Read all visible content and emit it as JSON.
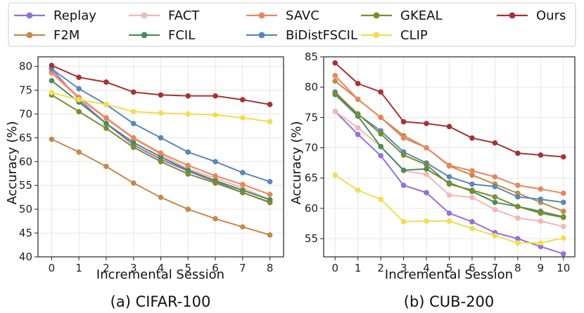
{
  "chart_data": [
    {
      "type": "line",
      "caption": "(a) CIFAR-100",
      "xlabel": "Incremental Session",
      "ylabel": "Accuracy (%)",
      "x": [
        0,
        1,
        2,
        3,
        4,
        5,
        6,
        7,
        8
      ],
      "xticks": [
        "0",
        "1",
        "2",
        "3",
        "4",
        "5",
        "6",
        "7",
        "8"
      ],
      "yticks": [
        "40",
        "45",
        "50",
        "55",
        "60",
        "65",
        "70",
        "75",
        "80"
      ],
      "ylim": [
        40,
        82
      ],
      "grid": true,
      "series": [
        {
          "name": "Replay",
          "values": [
            79.5,
            73.0,
            68.0,
            63.5,
            60.5,
            58.0,
            55.8,
            53.5,
            51.5
          ]
        },
        {
          "name": "F2M",
          "values": [
            64.7,
            62.0,
            59.0,
            55.5,
            52.5,
            50.0,
            48.0,
            46.3,
            44.6
          ]
        },
        {
          "name": "FACT",
          "values": [
            78.5,
            73.2,
            69.0,
            64.8,
            61.5,
            58.5,
            56.5,
            54.5,
            52.0
          ]
        },
        {
          "name": "FCIL",
          "values": [
            77.0,
            72.5,
            68.0,
            64.0,
            61.0,
            58.2,
            56.0,
            54.0,
            52.0
          ]
        },
        {
          "name": "SAVC",
          "values": [
            78.8,
            73.5,
            69.2,
            65.0,
            61.8,
            59.2,
            57.0,
            55.2,
            53.1
          ]
        },
        {
          "name": "BiDistFSCIL",
          "values": [
            79.5,
            75.3,
            72.0,
            68.0,
            65.0,
            62.0,
            60.0,
            57.7,
            55.8
          ]
        },
        {
          "name": "GKEAL",
          "values": [
            74.0,
            70.5,
            67.0,
            63.0,
            60.0,
            57.4,
            55.5,
            53.5,
            51.4
          ]
        },
        {
          "name": "CLIP",
          "values": [
            74.5,
            73.0,
            72.0,
            70.5,
            70.2,
            70.0,
            69.8,
            69.2,
            68.4
          ]
        },
        {
          "name": "Ours",
          "values": [
            80.2,
            77.7,
            76.7,
            74.6,
            74.0,
            73.8,
            73.8,
            73.0,
            72.0
          ]
        }
      ]
    },
    {
      "type": "line",
      "caption": "(b) CUB-200",
      "xlabel": "Incremental Session",
      "ylabel": "Accuracy (%)",
      "x": [
        0,
        1,
        2,
        3,
        4,
        5,
        6,
        7,
        8,
        9,
        10
      ],
      "xticks": [
        "0",
        "1",
        "2",
        "3",
        "4",
        "5",
        "6",
        "7",
        "8",
        "9",
        "10"
      ],
      "yticks": [
        "55",
        "60",
        "65",
        "70",
        "75",
        "80",
        "85"
      ],
      "ylim": [
        52,
        85
      ],
      "grid": true,
      "series": [
        {
          "name": "Replay",
          "values": [
            76.0,
            72.2,
            68.7,
            63.8,
            62.6,
            59.2,
            57.8,
            56.0,
            55.0,
            53.7,
            52.5
          ]
        },
        {
          "name": "F2M",
          "values": [
            81.0,
            78.0,
            75.0,
            72.0,
            70.0,
            67.0,
            65.5,
            64.0,
            62.5,
            61.0,
            59.5
          ]
        },
        {
          "name": "FACT",
          "values": [
            76.0,
            73.3,
            70.2,
            66.2,
            65.6,
            62.2,
            61.8,
            59.8,
            58.4,
            57.9,
            57.0
          ]
        },
        {
          "name": "FCIL",
          "values": [
            78.8,
            75.2,
            70.2,
            66.3,
            66.5,
            64.2,
            62.8,
            61.0,
            60.3,
            59.5,
            58.6
          ]
        },
        {
          "name": "SAVC",
          "values": [
            81.9,
            78.0,
            75.0,
            71.6,
            70.0,
            67.1,
            66.2,
            65.2,
            63.8,
            63.2,
            62.5
          ]
        },
        {
          "name": "BiDistFSCIL",
          "values": [
            79.2,
            75.5,
            72.8,
            69.3,
            67.5,
            65.2,
            64.0,
            63.6,
            61.9,
            61.5,
            61.0
          ]
        },
        {
          "name": "GKEAL",
          "values": [
            79.0,
            75.6,
            72.3,
            68.8,
            67.2,
            64.0,
            63.0,
            61.9,
            60.3,
            59.2,
            58.5
          ]
        },
        {
          "name": "CLIP",
          "values": [
            65.5,
            63.0,
            61.5,
            57.8,
            57.9,
            57.9,
            56.7,
            55.5,
            54.3,
            54.3,
            55.1
          ]
        },
        {
          "name": "Ours",
          "values": [
            84.0,
            80.6,
            79.2,
            74.3,
            74.0,
            73.5,
            71.6,
            70.8,
            69.1,
            68.8,
            68.5
          ]
        }
      ]
    }
  ],
  "legend": {
    "placement": "top",
    "entries": [
      {
        "name": "Replay",
        "color": "#9370db"
      },
      {
        "name": "F2M",
        "color": "#c48a4a"
      },
      {
        "name": "FACT",
        "color": "#f4b6b6"
      },
      {
        "name": "FCIL",
        "color": "#4a8c5f"
      },
      {
        "name": "SAVC",
        "color": "#e8865c"
      },
      {
        "name": "BiDistFSCIL",
        "color": "#5a86b8"
      },
      {
        "name": "GKEAL",
        "color": "#7c8c2e"
      },
      {
        "name": "CLIP",
        "color": "#f2dd4e"
      },
      {
        "name": "Ours",
        "color": "#a83232"
      }
    ]
  }
}
